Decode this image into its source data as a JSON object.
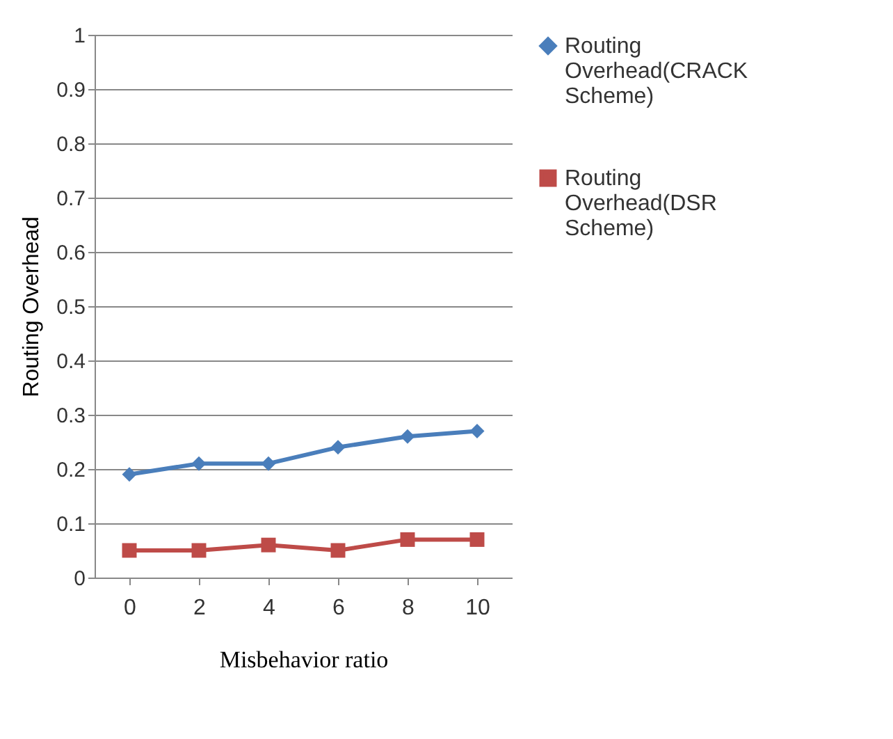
{
  "chart_data": {
    "type": "line",
    "xlabel": "Misbehavior ratio",
    "ylabel": "Routing Overhead",
    "categories": [
      "0",
      "2",
      "4",
      "6",
      "8",
      "10"
    ],
    "series": [
      {
        "name": "Routing Overhead(CRACK Scheme)",
        "color": "#4a7ebb",
        "marker": "diamond",
        "values": [
          0.19,
          0.21,
          0.21,
          0.24,
          0.26,
          0.27
        ]
      },
      {
        "name": "Routing Overhead(DSR Scheme)",
        "color": "#be4b48",
        "marker": "square",
        "values": [
          0.05,
          0.05,
          0.06,
          0.05,
          0.07,
          0.07
        ]
      }
    ],
    "ylim": [
      0,
      1
    ],
    "yticks": [
      0,
      0.1,
      0.2,
      0.3,
      0.4,
      0.5,
      0.6,
      0.7,
      0.8,
      0.9,
      1
    ],
    "grid": "y",
    "legend": "right",
    "line_style": "solid"
  }
}
